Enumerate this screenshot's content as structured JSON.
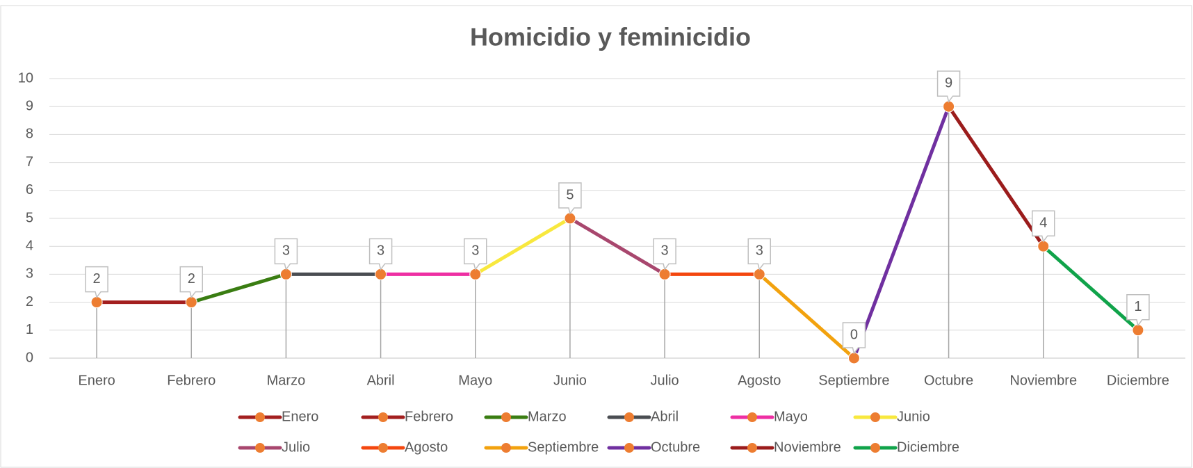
{
  "chart_data": {
    "type": "line",
    "title": "Homicidio y feminicidio",
    "categories": [
      "Enero",
      "Febrero",
      "Marzo",
      "Abril",
      "Mayo",
      "Junio",
      "Julio",
      "Agosto",
      "Septiembre",
      "Octubre",
      "Noviembre",
      "Diciembre"
    ],
    "values": [
      2,
      2,
      3,
      3,
      3,
      5,
      3,
      3,
      0,
      9,
      4,
      1
    ],
    "colors": [
      "#a31f1f",
      "#a31f1f",
      "#3a7d12",
      "#4a4d52",
      "#ee2fa3",
      "#f8e83e",
      "#a8476e",
      "#f4470f",
      "#f2a20e",
      "#7030a0",
      "#9b1c1c",
      "#10a34a"
    ],
    "marker_color": "#ed7d31",
    "ylim": [
      0,
      10
    ],
    "yticks": [
      0,
      1,
      2,
      3,
      4,
      5,
      6,
      7,
      8,
      9,
      10
    ],
    "grid": true,
    "drop_lines": true,
    "legend": "bottom"
  }
}
